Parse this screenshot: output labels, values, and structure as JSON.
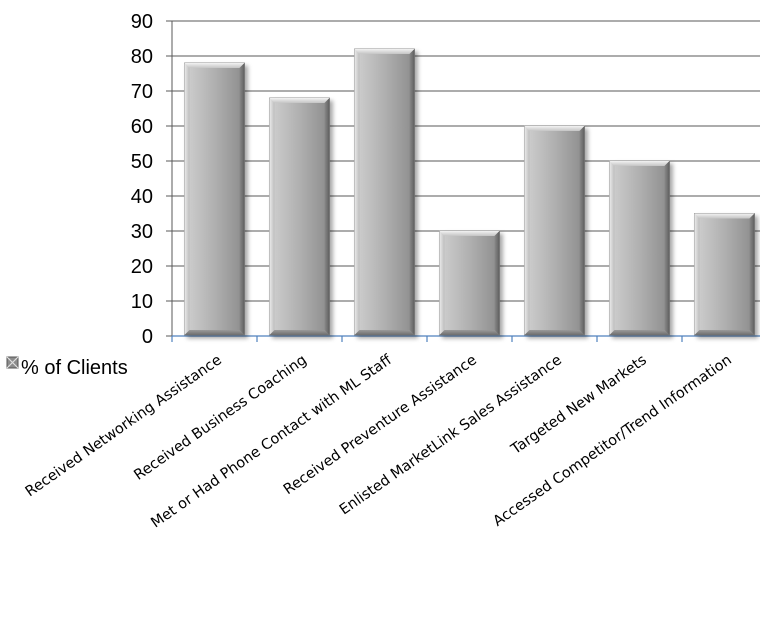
{
  "chart_data": {
    "type": "bar",
    "categories": [
      "Received Networking Assistance",
      "Received Business Coaching",
      "Met or Had Phone Contact with ML Staff",
      "Received Preventure Assistance",
      "Enlisted MarketLink Sales Assistance",
      "Targeted New Markets",
      "Accessed Competitor/Trend Information"
    ],
    "series": [
      {
        "name": "% of Clients",
        "values": [
          78,
          68,
          82,
          30,
          60,
          50,
          35
        ]
      }
    ],
    "ylim": [
      0,
      90
    ],
    "yticks": [
      0,
      10,
      20,
      30,
      40,
      50,
      60,
      70,
      80,
      90
    ],
    "grid": true,
    "legend_position": "bottom-left",
    "colors": {
      "bar": "#a6a6a6",
      "bar_edge": "#7f7f7f",
      "grid": "#595959",
      "x_axis": "#4f81bd"
    }
  }
}
